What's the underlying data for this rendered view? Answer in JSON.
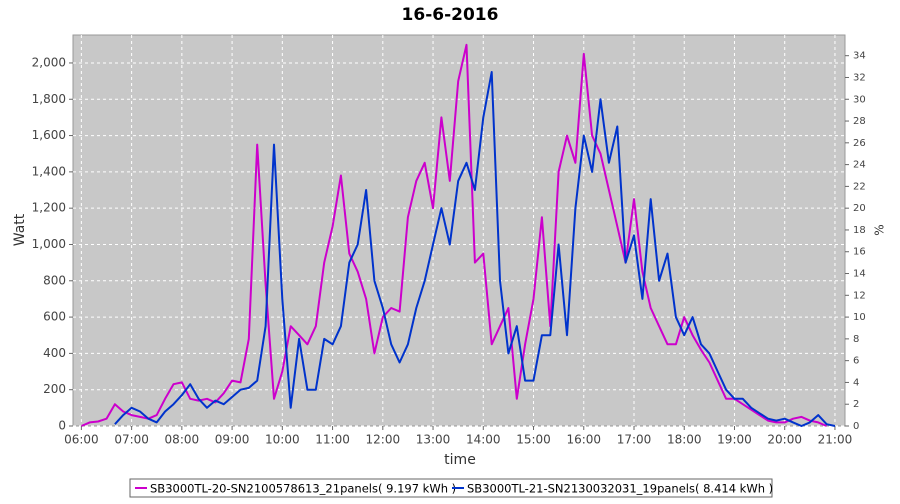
{
  "chart_data": {
    "type": "line",
    "title": "16-6-2016",
    "x_label": "time",
    "y_label": "Watt",
    "y2_label": "%",
    "x": [
      "06:00",
      "06:10",
      "06:20",
      "06:30",
      "06:40",
      "06:50",
      "07:00",
      "07:10",
      "07:20",
      "07:30",
      "07:40",
      "07:50",
      "08:00",
      "08:10",
      "08:20",
      "08:30",
      "08:40",
      "08:50",
      "09:00",
      "09:10",
      "09:20",
      "09:30",
      "09:40",
      "09:50",
      "10:00",
      "10:10",
      "10:20",
      "10:30",
      "10:40",
      "10:50",
      "11:00",
      "11:10",
      "11:20",
      "11:30",
      "11:40",
      "11:50",
      "12:00",
      "12:10",
      "12:20",
      "12:30",
      "12:40",
      "12:50",
      "13:00",
      "13:10",
      "13:20",
      "13:30",
      "13:40",
      "13:50",
      "14:00",
      "14:10",
      "14:20",
      "14:30",
      "14:40",
      "14:50",
      "15:00",
      "15:10",
      "15:20",
      "15:30",
      "15:40",
      "15:50",
      "16:00",
      "16:10",
      "16:20",
      "16:30",
      "16:40",
      "16:50",
      "17:00",
      "17:10",
      "17:20",
      "17:30",
      "17:40",
      "17:50",
      "18:00",
      "18:10",
      "18:20",
      "18:30",
      "18:40",
      "18:50",
      "19:00",
      "19:10",
      "19:20",
      "19:30",
      "19:40",
      "19:50",
      "20:00",
      "20:10",
      "20:20",
      "20:30",
      "20:40",
      "20:50",
      "21:00"
    ],
    "series": [
      {
        "name": "SB3000TL-20-SN2100578613_21panels( 9.197 kWh )",
        "color": "#cc00cc",
        "values": [
          0,
          20,
          25,
          40,
          120,
          80,
          60,
          50,
          40,
          60,
          150,
          230,
          240,
          150,
          140,
          150,
          130,
          180,
          250,
          240,
          480,
          1550,
          780,
          150,
          300,
          550,
          500,
          450,
          550,
          900,
          1100,
          1380,
          950,
          850,
          700,
          400,
          600,
          650,
          630,
          1150,
          1350,
          1450,
          1200,
          1700,
          1350,
          1900,
          2100,
          900,
          950,
          450,
          550,
          650,
          150,
          450,
          700,
          1150,
          550,
          1400,
          1600,
          1450,
          2050,
          1600,
          1500,
          1300,
          1100,
          900,
          1250,
          850,
          650,
          550,
          450,
          450,
          600,
          500,
          420,
          350,
          250,
          150,
          150,
          120,
          90,
          60,
          30,
          20,
          20,
          40,
          50,
          30,
          20,
          0,
          null
        ]
      },
      {
        "name": "SB3000TL-21-SN2130032031_19panels( 8.414 kWh )",
        "color": "#0033cc",
        "values": [
          null,
          null,
          null,
          null,
          10,
          60,
          100,
          80,
          40,
          20,
          80,
          120,
          170,
          230,
          150,
          100,
          140,
          120,
          160,
          200,
          210,
          250,
          550,
          1550,
          700,
          100,
          480,
          200,
          200,
          480,
          450,
          550,
          900,
          1000,
          1300,
          800,
          650,
          450,
          350,
          450,
          650,
          800,
          1000,
          1200,
          1000,
          1350,
          1450,
          1300,
          1700,
          1950,
          800,
          400,
          550,
          250,
          250,
          500,
          500,
          1000,
          500,
          1200,
          1600,
          1400,
          1800,
          1450,
          1650,
          900,
          1050,
          700,
          1250,
          800,
          950,
          600,
          500,
          600,
          450,
          400,
          300,
          200,
          150,
          150,
          100,
          70,
          40,
          30,
          40,
          20,
          0,
          20,
          60,
          10,
          0
        ]
      }
    ],
    "xlim": [
      "05:50",
      "21:12"
    ],
    "xticks": [
      "06:00",
      "07:00",
      "08:00",
      "09:00",
      "10:00",
      "11:00",
      "12:00",
      "13:00",
      "14:00",
      "15:00",
      "16:00",
      "17:00",
      "18:00",
      "19:00",
      "20:00",
      "21:00"
    ],
    "ylim": [
      0,
      2154
    ],
    "yticks": [
      0,
      200,
      400,
      600,
      800,
      {
        "value": 1000,
        "label": "1,000"
      },
      {
        "value": 1200,
        "label": "1,200"
      },
      {
        "value": 1400,
        "label": "1,400"
      },
      {
        "value": 1600,
        "label": "1,600"
      },
      {
        "value": 1800,
        "label": "1,800"
      },
      {
        "value": 2000,
        "label": "2,000"
      }
    ],
    "y2lim": [
      0,
      35.9
    ],
    "y2ticks": [
      0,
      2,
      4,
      6,
      8,
      10,
      12,
      14,
      16,
      18,
      20,
      22,
      24,
      26,
      28,
      30,
      32,
      34
    ],
    "grid": true
  }
}
